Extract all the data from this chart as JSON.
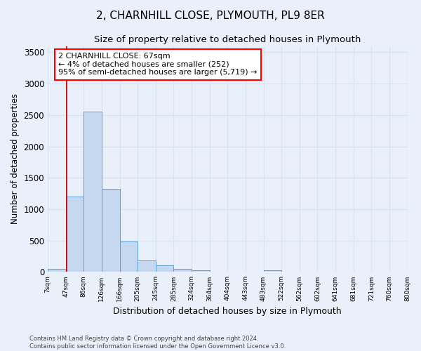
{
  "title": "2, CHARNHILL CLOSE, PLYMOUTH, PL9 8ER",
  "subtitle": "Size of property relative to detached houses in Plymouth",
  "xlabel": "Distribution of detached houses by size in Plymouth",
  "ylabel": "Number of detached properties",
  "footer_line1": "Contains HM Land Registry data © Crown copyright and database right 2024.",
  "footer_line2": "Contains public sector information licensed under the Open Government Licence v3.0.",
  "bin_labels": [
    "7sqm",
    "47sqm",
    "86sqm",
    "126sqm",
    "166sqm",
    "205sqm",
    "245sqm",
    "285sqm",
    "324sqm",
    "364sqm",
    "404sqm",
    "443sqm",
    "483sqm",
    "522sqm",
    "562sqm",
    "602sqm",
    "641sqm",
    "681sqm",
    "721sqm",
    "760sqm",
    "800sqm"
  ],
  "bar_values": [
    50,
    1200,
    2560,
    1330,
    490,
    185,
    100,
    50,
    30,
    0,
    0,
    0,
    30,
    0,
    0,
    0,
    0,
    0,
    0,
    0
  ],
  "bar_color": "#c5d8f0",
  "bar_edge_color": "#5a9fd4",
  "ylim": [
    0,
    3600
  ],
  "yticks": [
    0,
    500,
    1000,
    1500,
    2000,
    2500,
    3000,
    3500
  ],
  "annotation_line1": "2 CHARNHILL CLOSE: 67sqm",
  "annotation_line2": "← 4% of detached houses are smaller (252)",
  "annotation_line3": "95% of semi-detached houses are larger (5,719) →",
  "vline_color": "#cc0000",
  "background_color": "#eaf0fa",
  "grid_color": "#d8e4f0",
  "title_fontsize": 11,
  "subtitle_fontsize": 9.5
}
